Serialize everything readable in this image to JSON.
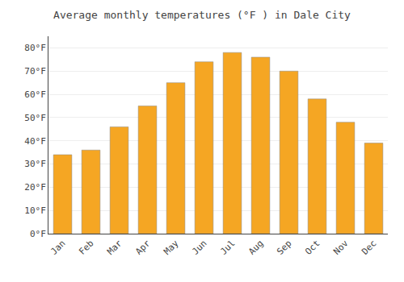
{
  "chart_data": {
    "type": "bar",
    "title": "Average monthly temperatures (°F ) in Dale City",
    "categories": [
      "Jan",
      "Feb",
      "Mar",
      "Apr",
      "May",
      "Jun",
      "Jul",
      "Aug",
      "Sep",
      "Oct",
      "Nov",
      "Dec"
    ],
    "values": [
      34,
      36,
      46,
      55,
      65,
      74,
      78,
      76,
      70,
      58,
      48,
      39
    ],
    "color": "#F5A623",
    "ylim": [
      0,
      85
    ],
    "yticks": [
      {
        "value": 0,
        "label": "0°F"
      },
      {
        "value": 10,
        "label": "10°F"
      },
      {
        "value": 20,
        "label": "20°F"
      },
      {
        "value": 30,
        "label": "30°F"
      },
      {
        "value": 40,
        "label": "40°F"
      },
      {
        "value": 50,
        "label": "50°F"
      },
      {
        "value": 60,
        "label": "60°F"
      },
      {
        "value": 70,
        "label": "70°F"
      },
      {
        "value": 80,
        "label": "80°F"
      }
    ],
    "grid": true
  }
}
